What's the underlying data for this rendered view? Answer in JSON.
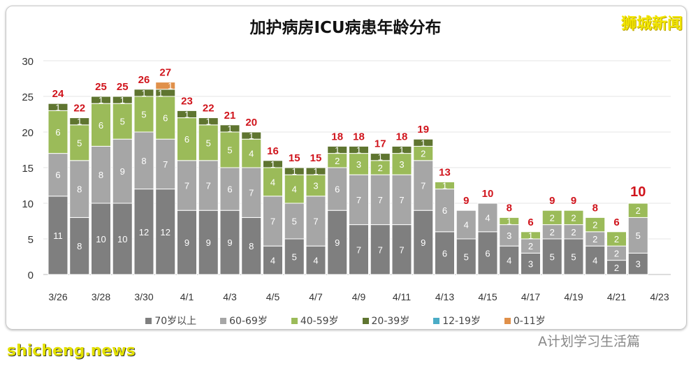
{
  "logo_text": "狮城新闻",
  "watermark": "A计划学习生活篇",
  "site": "shicheng.news",
  "chart_data": {
    "type": "bar",
    "stacked": true,
    "title": "加护病房ICU病患年龄分布",
    "xlabel": "",
    "ylabel": "",
    "ylim": [
      0,
      30
    ],
    "yticks": [
      0,
      5,
      10,
      15,
      20,
      25,
      30
    ],
    "grid": true,
    "legend": "bottom",
    "categories": [
      "3/26",
      "3/27",
      "3/28",
      "3/29",
      "3/30",
      "3/31",
      "4/1",
      "4/2",
      "4/3",
      "4/4",
      "4/5",
      "4/6",
      "4/7",
      "4/8",
      "4/9",
      "4/10",
      "4/11",
      "4/12",
      "4/13",
      "4/14",
      "4/15",
      "4/16",
      "4/17",
      "4/18",
      "4/19",
      "4/20",
      "4/21",
      "4/22",
      "4/23"
    ],
    "xtick_labels": [
      "3/26",
      "3/28",
      "3/30",
      "4/1",
      "4/3",
      "4/5",
      "4/7",
      "4/9",
      "4/11",
      "4/13",
      "4/15",
      "4/17",
      "4/19",
      "4/21",
      "4/23"
    ],
    "series": [
      {
        "name": "70岁以上",
        "color": "#7f7f7f",
        "values": [
          11,
          8,
          10,
          10,
          12,
          12,
          9,
          9,
          9,
          8,
          4,
          5,
          4,
          9,
          7,
          7,
          7,
          9,
          6,
          5,
          6,
          4,
          3,
          5,
          5,
          4,
          2,
          3,
          0
        ]
      },
      {
        "name": "60-69岁",
        "color": "#a6a6a6",
        "values": [
          6,
          8,
          8,
          9,
          8,
          7,
          7,
          7,
          6,
          7,
          7,
          5,
          7,
          6,
          7,
          7,
          7,
          7,
          6,
          4,
          4,
          3,
          2,
          2,
          2,
          2,
          2,
          5,
          0
        ]
      },
      {
        "name": "40-59岁",
        "color": "#9bbb59",
        "values": [
          6,
          5,
          6,
          5,
          5,
          6,
          6,
          5,
          5,
          4,
          4,
          4,
          3,
          2,
          3,
          2,
          3,
          2,
          1,
          0,
          0,
          1,
          1,
          2,
          2,
          2,
          2,
          2,
          0
        ]
      },
      {
        "name": "20-39岁",
        "color": "#5f7530",
        "values": [
          1,
          1,
          1,
          1,
          1,
          1,
          1,
          1,
          1,
          1,
          1,
          1,
          1,
          1,
          1,
          1,
          1,
          1,
          0,
          0,
          0,
          0,
          0,
          0,
          0,
          0,
          0,
          0,
          0
        ]
      },
      {
        "name": "12-19岁",
        "color": "#4bacc6",
        "values": [
          0,
          0,
          0,
          0,
          0,
          0,
          0,
          0,
          0,
          0,
          0,
          0,
          0,
          0,
          0,
          0,
          0,
          0,
          0,
          0,
          0,
          0,
          0,
          0,
          0,
          0,
          0,
          0,
          0
        ]
      },
      {
        "name": "0-11岁",
        "color": "#e0904a",
        "values": [
          0,
          0,
          0,
          0,
          0,
          1,
          0,
          0,
          0,
          0,
          0,
          0,
          0,
          0,
          0,
          0,
          0,
          0,
          0,
          0,
          0,
          0,
          0,
          0,
          0,
          0,
          0,
          0,
          0
        ]
      }
    ],
    "totals": [
      24,
      22,
      25,
      25,
      26,
      27,
      23,
      22,
      21,
      20,
      16,
      15,
      15,
      18,
      18,
      17,
      18,
      19,
      13,
      9,
      10,
      8,
      6,
      9,
      9,
      8,
      6,
      10,
      null
    ]
  }
}
